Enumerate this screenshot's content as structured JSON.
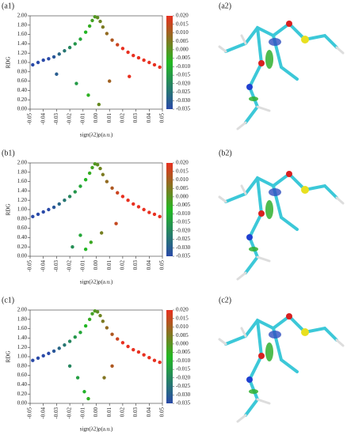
{
  "chart_data": [
    {
      "type": "scatter",
      "label": "(a1)",
      "panel_label": "(a2)",
      "x_label": "sign(λ2)ρ(a.u.)",
      "y_label": "RDG",
      "x": [
        -0.048,
        -0.044,
        -0.04,
        -0.036,
        -0.032,
        -0.028,
        -0.024,
        -0.02,
        -0.016,
        -0.012,
        -0.008,
        -0.005,
        -0.003,
        -0.001,
        0.001,
        0.003,
        0.005,
        0.008,
        0.012,
        0.016,
        0.02,
        0.024,
        0.028,
        0.032,
        0.036,
        0.04,
        0.044,
        0.048,
        -0.03,
        -0.015,
        -0.006,
        0.002,
        0.01,
        0.025
      ],
      "values": [
        0.95,
        1.0,
        1.05,
        1.08,
        1.12,
        1.18,
        1.25,
        1.32,
        1.4,
        1.5,
        1.65,
        1.78,
        1.9,
        1.98,
        1.96,
        1.88,
        1.76,
        1.62,
        1.48,
        1.38,
        1.3,
        1.22,
        1.15,
        1.1,
        1.05,
        1.0,
        0.95,
        0.9,
        0.75,
        0.55,
        0.3,
        0.1,
        0.6,
        0.7
      ],
      "xlim": [
        -0.05,
        0.05
      ],
      "ylim": [
        0,
        2
      ],
      "xticks": [
        -0.05,
        -0.04,
        -0.03,
        -0.02,
        -0.01,
        {
          "value": 0,
          "label": "0.00"
        },
        0.01,
        0.02,
        0.03,
        0.04,
        0.05
      ],
      "yticks": [
        {
          "value": 0,
          "label": "0.00"
        },
        {
          "value": 0.2,
          "label": "0.20"
        },
        {
          "value": 0.4,
          "label": "0.40"
        },
        {
          "value": 0.6,
          "label": "0.60"
        },
        {
          "value": 0.8,
          "label": "0.80"
        },
        {
          "value": 1,
          "label": "1.00"
        },
        {
          "value": 1.2,
          "label": "1.20"
        },
        {
          "value": 1.4,
          "label": "1.40"
        },
        {
          "value": 1.6,
          "label": "1.60"
        },
        {
          "value": 1.8,
          "label": "1.80"
        },
        {
          "value": 2,
          "label": "2.00"
        }
      ],
      "colorbar_lim": [
        -0.035,
        0.02
      ],
      "colorbar_ticks": [
        {
          "value": 0.02,
          "label": "0.020"
        },
        {
          "value": 0.015,
          "label": "0.015"
        },
        {
          "value": 0.01,
          "label": "0.010"
        },
        {
          "value": 0.005,
          "label": "0.005"
        },
        {
          "value": 0,
          "label": "0.000"
        },
        {
          "value": -0.005,
          "label": "-0.005"
        },
        {
          "value": -0.01,
          "label": "-0.010"
        },
        {
          "value": -0.015,
          "label": "-0.015"
        },
        {
          "value": -0.02,
          "label": "-0.020"
        },
        {
          "value": -0.025,
          "label": "-0.025"
        },
        {
          "value": -0.03,
          "label": "-0.030"
        },
        {
          "value": -0.035,
          "label": "-0.035"
        }
      ],
      "colormap": [
        "#2a4aa8",
        "#22b822",
        "#e83020"
      ]
    },
    {
      "type": "scatter",
      "label": "(b1)",
      "panel_label": "(b2)",
      "x_label": "sign(λ2)ρ(a.u.)",
      "y_label": "RDG",
      "x": [
        -0.048,
        -0.044,
        -0.04,
        -0.036,
        -0.032,
        -0.028,
        -0.024,
        -0.02,
        -0.016,
        -0.012,
        -0.008,
        -0.005,
        -0.003,
        -0.001,
        0.001,
        0.003,
        0.005,
        0.008,
        0.012,
        0.016,
        0.02,
        0.024,
        0.028,
        0.032,
        0.036,
        0.04,
        0.044,
        0.048,
        -0.018,
        -0.012,
        -0.008,
        -0.004,
        0.004,
        0.015
      ],
      "values": [
        0.85,
        0.9,
        0.95,
        1.0,
        1.05,
        1.12,
        1.2,
        1.28,
        1.38,
        1.5,
        1.64,
        1.78,
        1.9,
        1.98,
        1.96,
        1.88,
        1.75,
        1.6,
        1.46,
        1.36,
        1.28,
        1.2,
        1.12,
        1.06,
        1.0,
        0.94,
        0.9,
        0.85,
        0.2,
        0.45,
        0.15,
        0.3,
        0.5,
        0.7
      ],
      "xlim": [
        -0.05,
        0.05
      ],
      "ylim": [
        0,
        2
      ],
      "xticks": [
        -0.05,
        -0.04,
        -0.03,
        -0.02,
        -0.01,
        {
          "value": 0,
          "label": "0.00"
        },
        0.01,
        0.02,
        0.03,
        0.04,
        0.05
      ],
      "yticks": [
        {
          "value": 0,
          "label": "0.00"
        },
        {
          "value": 0.2,
          "label": "0.20"
        },
        {
          "value": 0.4,
          "label": "0.40"
        },
        {
          "value": 0.6,
          "label": "0.60"
        },
        {
          "value": 0.8,
          "label": "0.80"
        },
        {
          "value": 1,
          "label": "1.00"
        },
        {
          "value": 1.2,
          "label": "1.20"
        },
        {
          "value": 1.4,
          "label": "1.40"
        },
        {
          "value": 1.6,
          "label": "1.60"
        },
        {
          "value": 1.8,
          "label": "1.80"
        },
        {
          "value": 2,
          "label": "2.00"
        }
      ],
      "colorbar_lim": [
        -0.035,
        0.02
      ],
      "colorbar_ticks": [
        {
          "value": 0.02,
          "label": "0.020"
        },
        {
          "value": 0.015,
          "label": "0.015"
        },
        {
          "value": 0.01,
          "label": "0.010"
        },
        {
          "value": 0.005,
          "label": "0.005"
        },
        {
          "value": 0,
          "label": "0.000"
        },
        {
          "value": -0.005,
          "label": "-0.005"
        },
        {
          "value": -0.01,
          "label": "-0.010"
        },
        {
          "value": -0.015,
          "label": "-0.015"
        },
        {
          "value": -0.02,
          "label": "-0.020"
        },
        {
          "value": -0.025,
          "label": "-0.025"
        },
        {
          "value": -0.03,
          "label": "-0.030"
        },
        {
          "value": -0.035,
          "label": "-0.035"
        }
      ],
      "colormap": [
        "#2a4aa8",
        "#22b822",
        "#e83020"
      ]
    },
    {
      "type": "scatter",
      "label": "(c1)",
      "panel_label": "(c2)",
      "x_label": "sign(λ2)ρ(a.u.)",
      "y_label": "RDG",
      "x": [
        -0.048,
        -0.044,
        -0.04,
        -0.036,
        -0.032,
        -0.028,
        -0.024,
        -0.02,
        -0.016,
        -0.012,
        -0.008,
        -0.005,
        -0.003,
        -0.001,
        0.001,
        0.003,
        0.005,
        0.008,
        0.012,
        0.016,
        0.02,
        0.024,
        0.028,
        0.032,
        0.036,
        0.04,
        0.044,
        0.048,
        -0.02,
        -0.014,
        -0.009,
        -0.006,
        0.006,
        0.012
      ],
      "values": [
        0.92,
        0.97,
        1.02,
        1.07,
        1.12,
        1.18,
        1.25,
        1.33,
        1.42,
        1.52,
        1.66,
        1.8,
        1.92,
        1.98,
        1.96,
        1.88,
        1.76,
        1.62,
        1.48,
        1.38,
        1.3,
        1.22,
        1.15,
        1.1,
        1.04,
        0.98,
        0.92,
        0.88,
        0.8,
        0.55,
        0.25,
        0.1,
        0.55,
        0.8
      ],
      "xlim": [
        -0.05,
        0.05
      ],
      "ylim": [
        0,
        2
      ],
      "xticks": [
        -0.05,
        -0.04,
        -0.03,
        -0.02,
        -0.01,
        {
          "value": 0,
          "label": "0.00"
        },
        0.01,
        0.02,
        0.03,
        0.04,
        0.05
      ],
      "yticks": [
        {
          "value": 0,
          "label": "0.00"
        },
        {
          "value": 0.2,
          "label": "0.20"
        },
        {
          "value": 0.4,
          "label": "0.40"
        },
        {
          "value": 0.6,
          "label": "0.60"
        },
        {
          "value": 0.8,
          "label": "0.80"
        },
        {
          "value": 1,
          "label": "1.00"
        },
        {
          "value": 1.2,
          "label": "1.20"
        },
        {
          "value": 1.4,
          "label": "1.40"
        },
        {
          "value": 1.6,
          "label": "1.60"
        },
        {
          "value": 1.8,
          "label": "1.80"
        },
        {
          "value": 2,
          "label": "2.00"
        }
      ],
      "colorbar_lim": [
        -0.035,
        0.02
      ],
      "colorbar_ticks": [
        {
          "value": 0.02,
          "label": "0.020"
        },
        {
          "value": 0.015,
          "label": "0.015"
        },
        {
          "value": 0.01,
          "label": "0.010"
        },
        {
          "value": 0.005,
          "label": "0.005"
        },
        {
          "value": 0,
          "label": "0.000"
        },
        {
          "value": -0.005,
          "label": "-0.005"
        },
        {
          "value": -0.01,
          "label": "-0.010"
        },
        {
          "value": -0.015,
          "label": "-0.015"
        },
        {
          "value": -0.02,
          "label": "-0.020"
        },
        {
          "value": -0.025,
          "label": "-0.025"
        },
        {
          "value": -0.03,
          "label": "-0.030"
        },
        {
          "value": -0.035,
          "label": "-0.035"
        }
      ],
      "colormap": [
        "#2a4aa8",
        "#22b822",
        "#e83020"
      ]
    }
  ]
}
